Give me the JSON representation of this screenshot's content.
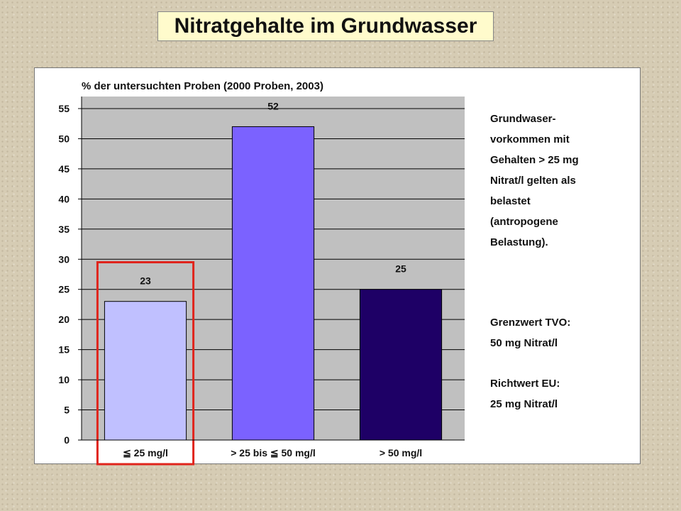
{
  "title": "Nitratgehalte im Grundwasser",
  "chart_data": {
    "type": "bar",
    "subtitle": "% der untersuchten Proben  (2000 Proben, 2003)",
    "categories": [
      "≦ 25 mg/l",
      "> 25 bis ≦ 50 mg/l",
      "> 50 mg/l"
    ],
    "values": [
      23,
      52,
      25
    ],
    "bar_colors": [
      "#c0c0ff",
      "#7b62ff",
      "#1e0066"
    ],
    "ylim": [
      0,
      55
    ],
    "yticks": [
      0,
      5,
      10,
      15,
      20,
      25,
      30,
      35,
      40,
      45,
      50,
      55
    ],
    "grid": true,
    "plot_background": "#c0c0c0",
    "highlighted_category_index": 0,
    "highlight_color": "#e0241c"
  },
  "side_note": {
    "lines": [
      "Grundwaser-",
      "vorkommen mit",
      "Gehalten > 25 mg",
      "Nitrat/l gelten als",
      "belastet",
      "(antropogene",
      "Belastung)."
    ]
  },
  "limits": {
    "tvo_label": "Grenzwert TVO:",
    "tvo_value": "50 mg Nitrat/l",
    "eu_label": "Richtwert EU:",
    "eu_value": "25 mg Nitrat/l"
  }
}
